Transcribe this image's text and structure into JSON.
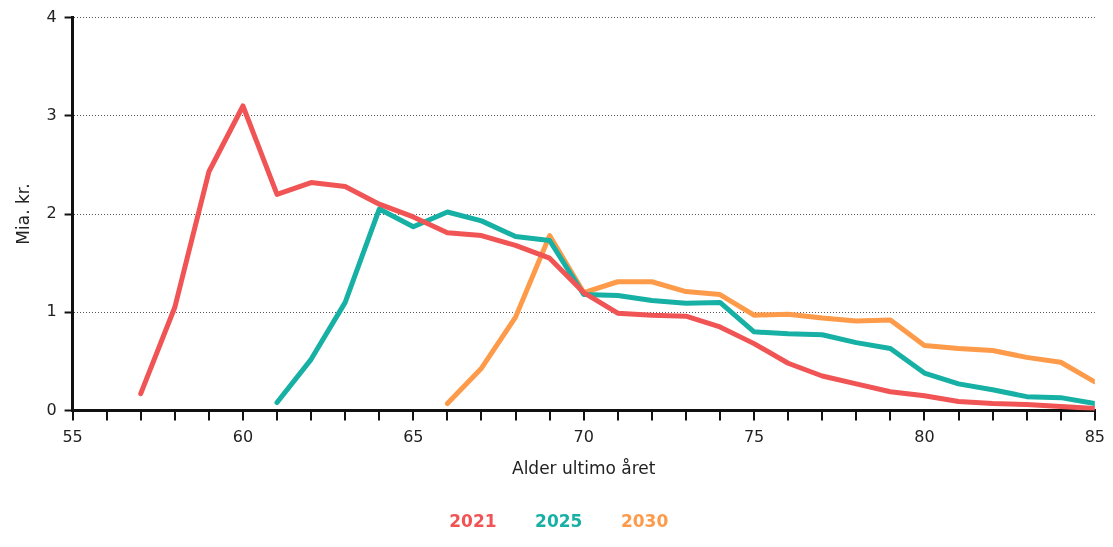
{
  "chart_data": {
    "type": "line",
    "xlabel": "Alder ultimo året",
    "ylabel": "Mia. kr.",
    "xlim": [
      55,
      85
    ],
    "xticks": [
      55,
      {
        "value": 56,
        "label": null
      },
      {
        "value": 57,
        "label": null
      },
      {
        "value": 58,
        "label": null
      },
      {
        "value": 59,
        "label": null
      },
      60,
      {
        "value": 61,
        "label": null
      },
      {
        "value": 62,
        "label": null
      },
      {
        "value": 63,
        "label": null
      },
      {
        "value": 64,
        "label": null
      },
      65,
      {
        "value": 66,
        "label": null
      },
      {
        "value": 67,
        "label": null
      },
      {
        "value": 68,
        "label": null
      },
      {
        "value": 69,
        "label": null
      },
      70,
      {
        "value": 71,
        "label": null
      },
      {
        "value": 72,
        "label": null
      },
      {
        "value": 73,
        "label": null
      },
      {
        "value": 74,
        "label": null
      },
      75,
      {
        "value": 76,
        "label": null
      },
      {
        "value": 77,
        "label": null
      },
      {
        "value": 78,
        "label": null
      },
      {
        "value": 79,
        "label": null
      },
      80,
      {
        "value": 81,
        "label": null
      },
      {
        "value": 82,
        "label": null
      },
      {
        "value": 83,
        "label": null
      },
      {
        "value": 84,
        "label": null
      },
      85
    ],
    "ylim": [
      0,
      4
    ],
    "yticks": [
      0,
      1,
      2,
      3,
      4
    ],
    "grid": "y",
    "legend": "bottom",
    "marker": "none",
    "line_style": "solid",
    "series": [
      {
        "name": "2021",
        "color": "#f05454",
        "x": [
          57,
          58,
          59,
          60,
          61,
          62,
          63,
          64,
          65,
          66,
          67,
          68,
          69,
          70,
          71,
          72,
          73,
          74,
          75,
          76,
          77,
          78,
          79,
          80,
          81,
          82,
          83,
          84,
          85
        ],
        "values": [
          0.17,
          1.05,
          2.43,
          3.1,
          2.2,
          2.32,
          2.28,
          2.1,
          1.97,
          1.81,
          1.78,
          1.68,
          1.55,
          1.2,
          0.99,
          0.97,
          0.96,
          0.85,
          0.68,
          0.48,
          0.35,
          0.27,
          0.19,
          0.15,
          0.09,
          0.07,
          0.06,
          0.04,
          0.02
        ]
      },
      {
        "name": "2025",
        "color": "#17b0a4",
        "x": [
          61,
          62,
          63,
          64,
          65,
          66,
          67,
          68,
          69,
          70,
          71,
          72,
          73,
          74,
          75,
          76,
          77,
          78,
          79,
          80,
          81,
          82,
          83,
          84,
          85
        ],
        "values": [
          0.08,
          0.52,
          1.1,
          2.05,
          1.87,
          2.02,
          1.93,
          1.77,
          1.73,
          1.18,
          1.17,
          1.12,
          1.09,
          1.1,
          0.8,
          0.78,
          0.77,
          0.69,
          0.63,
          0.38,
          0.27,
          0.21,
          0.14,
          0.13,
          0.07
        ]
      },
      {
        "name": "2030",
        "color": "#fd9b4a",
        "x": [
          66,
          67,
          68,
          69,
          70,
          71,
          72,
          73,
          74,
          75,
          76,
          77,
          78,
          79,
          80,
          81,
          82,
          83,
          84,
          85
        ],
        "values": [
          0.07,
          0.43,
          0.95,
          1.78,
          1.2,
          1.31,
          1.31,
          1.21,
          1.18,
          0.97,
          0.98,
          0.94,
          0.91,
          0.92,
          0.66,
          0.63,
          0.61,
          0.54,
          0.49,
          0.29
        ]
      }
    ]
  }
}
